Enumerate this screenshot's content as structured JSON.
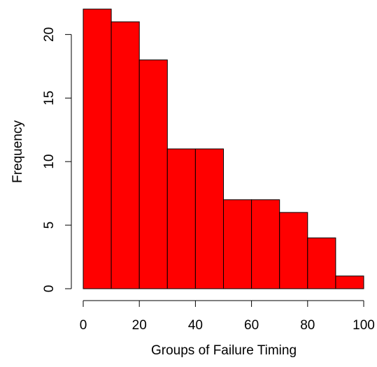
{
  "chart_data": {
    "type": "bar",
    "title": "",
    "xlabel": "Groups of Failure Timing",
    "ylabel": "Frequency",
    "bins": [
      {
        "start": 0,
        "end": 10,
        "count": 22
      },
      {
        "start": 10,
        "end": 20,
        "count": 21
      },
      {
        "start": 20,
        "end": 30,
        "count": 18
      },
      {
        "start": 30,
        "end": 40,
        "count": 11
      },
      {
        "start": 40,
        "end": 50,
        "count": 11
      },
      {
        "start": 50,
        "end": 60,
        "count": 7
      },
      {
        "start": 60,
        "end": 70,
        "count": 7
      },
      {
        "start": 70,
        "end": 80,
        "count": 6
      },
      {
        "start": 80,
        "end": 90,
        "count": 4
      },
      {
        "start": 90,
        "end": 100,
        "count": 1
      }
    ],
    "xlim": [
      0,
      100
    ],
    "ylim": [
      0,
      22
    ],
    "x_ticks": [
      0,
      20,
      40,
      60,
      80,
      100
    ],
    "y_ticks": [
      0,
      5,
      10,
      15,
      20
    ],
    "bar_color": "#ff0000",
    "bar_edge_color": "#000000",
    "grid": false,
    "legend": "none"
  }
}
